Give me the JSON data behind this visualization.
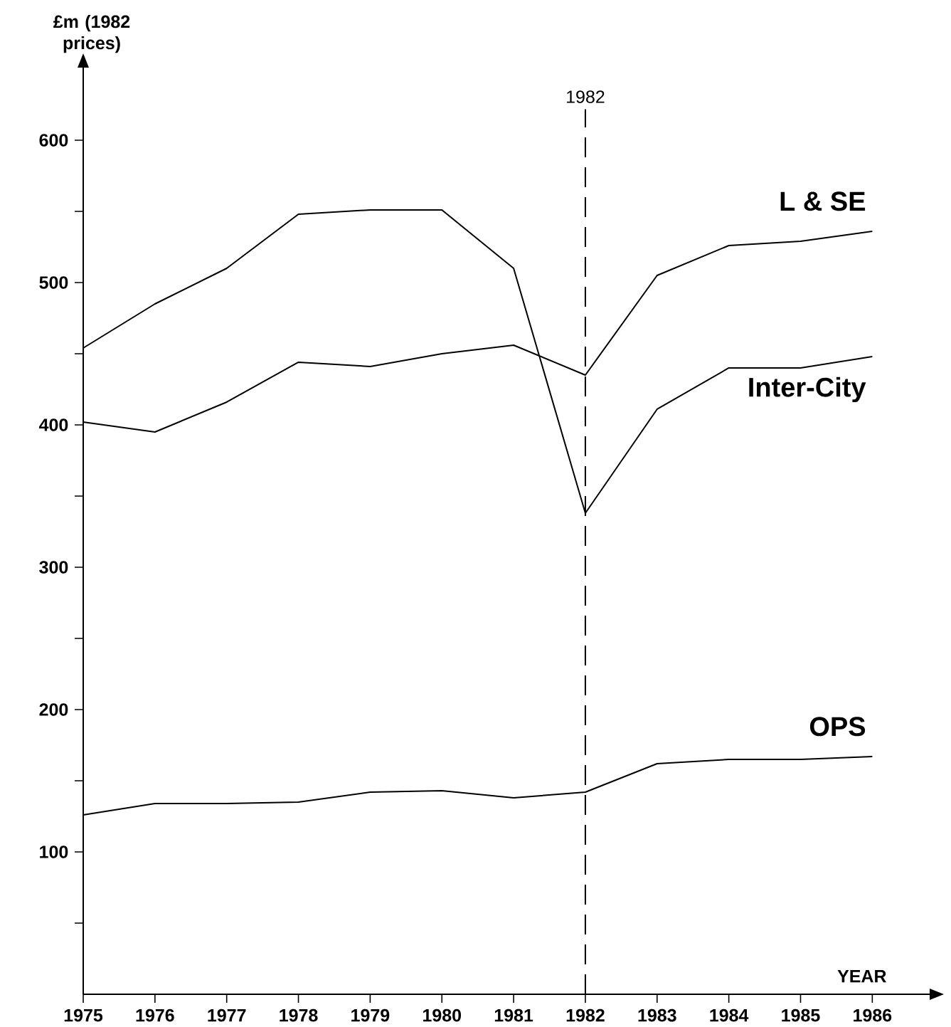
{
  "chart_data": {
    "type": "line",
    "ylabel": "£m (1982 prices)",
    "xlabel": "YEAR",
    "x": [
      1975,
      1976,
      1977,
      1978,
      1979,
      1980,
      1981,
      1982,
      1983,
      1984,
      1985,
      1986
    ],
    "xlim": [
      1975,
      1986.8
    ],
    "xticks": [
      1975,
      1976,
      1977,
      1978,
      1979,
      1980,
      1981,
      1982,
      1983,
      1984,
      1985,
      1986
    ],
    "ylim": [
      0,
      651
    ],
    "yticks": [
      {
        "value": 50,
        "label": null
      },
      100,
      {
        "value": 150,
        "label": null
      },
      200,
      {
        "value": 250,
        "label": null
      },
      300,
      {
        "value": 350,
        "label": null
      },
      400,
      {
        "value": 450,
        "label": null
      },
      500,
      {
        "value": 550,
        "label": null
      },
      600
    ],
    "line_style": "solid",
    "marker": "none",
    "series": [
      {
        "name": "L & SE",
        "color": "#000000",
        "values": [
          402,
          395,
          416,
          444,
          441,
          450,
          456,
          435,
          505,
          526,
          529,
          536
        ]
      },
      {
        "name": "Inter-City",
        "color": "#000000",
        "values": [
          454,
          485,
          510,
          548,
          551,
          551,
          510,
          338,
          411,
          440,
          440,
          448
        ]
      },
      {
        "name": "OPS",
        "color": "#000000",
        "values": [
          126,
          134,
          134,
          135,
          142,
          143,
          138,
          142,
          162,
          165,
          165,
          167
        ]
      }
    ],
    "ref_lines": [
      {
        "axis": "x",
        "value": 1982,
        "label": "1982",
        "color": "#000000",
        "line_style": "dashed"
      }
    ]
  }
}
